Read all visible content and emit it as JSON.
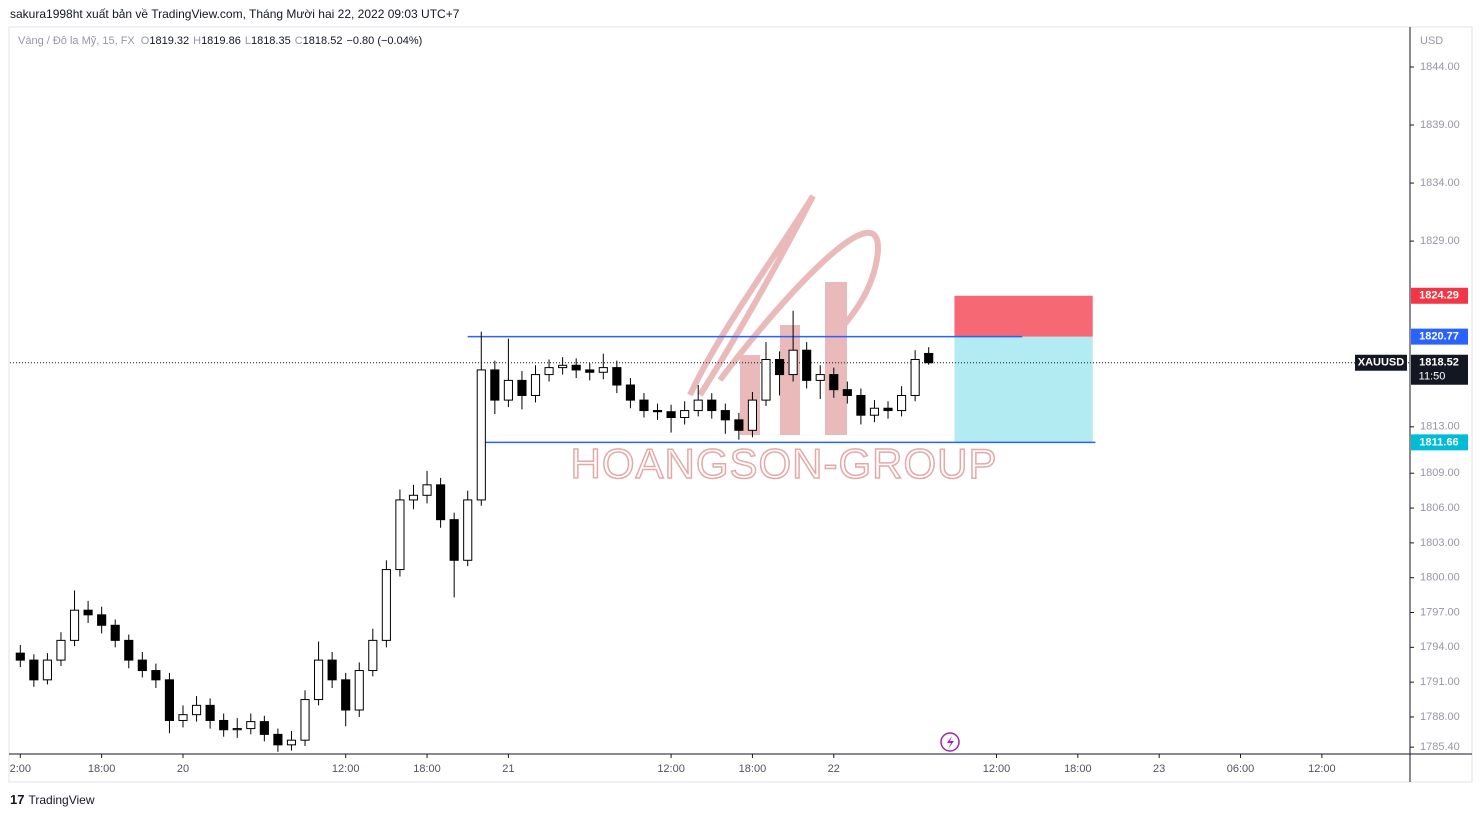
{
  "header": {
    "published": "sakura1998ht xuất bản về TradingView.com, Tháng Mười hai 22, 2022 09:03 UTC+7"
  },
  "chart_data": {
    "type": "candlestick",
    "symbol_info": "Vàng / Đô la Mỹ, 15, FX",
    "ohlc_labels": [
      "O",
      "H",
      "L",
      "C"
    ],
    "ohlc_values": [
      1819.32,
      1819.86,
      1818.35,
      1818.52
    ],
    "change": "−0.80 (−0.04%)",
    "currency": "USD",
    "symbol": "XAUUSD",
    "countdown": "11:50",
    "up_color": "#ffffff",
    "down_color": "#000000",
    "border_color": "#000000",
    "x": [
      -12,
      -11,
      -10,
      -9,
      -8,
      -7,
      -6,
      -5,
      -4,
      -3,
      -2,
      -1,
      0,
      1,
      2,
      3,
      4,
      5,
      6,
      7,
      8,
      9,
      10,
      11,
      12,
      13,
      14,
      15,
      16,
      17,
      18,
      19,
      20,
      21,
      22,
      23,
      24,
      25,
      26,
      27,
      28,
      29,
      30,
      31,
      32,
      33,
      34,
      35,
      36,
      37,
      38,
      39,
      40,
      41,
      42,
      43,
      44,
      45,
      46,
      47,
      48,
      49,
      50,
      51,
      52,
      53,
      54,
      55
    ],
    "candles": [
      [
        1793.5,
        1794.2,
        1792.3,
        1792.9
      ],
      [
        1792.9,
        1793.4,
        1790.6,
        1791.2
      ],
      [
        1791.2,
        1793.5,
        1790.8,
        1792.9
      ],
      [
        1792.9,
        1795.3,
        1792.4,
        1794.6
      ],
      [
        1794.6,
        1798.9,
        1794.1,
        1797.2
      ],
      [
        1797.2,
        1798.0,
        1796.1,
        1796.8
      ],
      [
        1796.8,
        1797.5,
        1795.2,
        1795.9
      ],
      [
        1795.9,
        1796.4,
        1794.0,
        1794.6
      ],
      [
        1794.6,
        1795.1,
        1792.2,
        1792.9
      ],
      [
        1792.9,
        1793.6,
        1791.4,
        1792.0
      ],
      [
        1792.0,
        1792.6,
        1790.5,
        1791.2
      ],
      [
        1791.2,
        1791.8,
        1786.6,
        1787.7
      ],
      [
        1787.7,
        1789.0,
        1787.1,
        1788.2
      ],
      [
        1788.2,
        1789.8,
        1787.6,
        1789.0
      ],
      [
        1789.0,
        1789.6,
        1787.0,
        1787.7
      ],
      [
        1787.7,
        1788.3,
        1786.3,
        1786.9
      ],
      [
        1786.9,
        1787.9,
        1786.2,
        1787.0
      ],
      [
        1787.0,
        1788.3,
        1786.5,
        1787.6
      ],
      [
        1787.6,
        1788.1,
        1785.9,
        1786.5
      ],
      [
        1786.5,
        1787.0,
        1785.0,
        1785.6
      ],
      [
        1785.6,
        1786.8,
        1785.1,
        1786.0
      ],
      [
        1786.0,
        1790.3,
        1785.5,
        1789.5
      ],
      [
        1789.5,
        1794.5,
        1789.0,
        1792.9
      ],
      [
        1792.9,
        1793.6,
        1790.5,
        1791.2
      ],
      [
        1791.2,
        1791.8,
        1787.2,
        1788.6
      ],
      [
        1788.6,
        1792.7,
        1788.0,
        1792.0
      ],
      [
        1792.0,
        1795.6,
        1791.5,
        1794.6
      ],
      [
        1794.6,
        1801.5,
        1794.0,
        1800.7
      ],
      [
        1800.7,
        1807.6,
        1800.1,
        1806.7
      ],
      [
        1806.7,
        1808.0,
        1805.9,
        1807.1
      ],
      [
        1807.1,
        1809.2,
        1806.4,
        1808.0
      ],
      [
        1808.0,
        1808.6,
        1804.3,
        1805.0
      ],
      [
        1805.0,
        1805.6,
        1798.3,
        1801.5
      ],
      [
        1801.5,
        1807.5,
        1801.0,
        1806.7
      ],
      [
        1806.7,
        1821.2,
        1806.2,
        1817.9
      ],
      [
        1817.9,
        1818.7,
        1814.1,
        1815.3
      ],
      [
        1815.3,
        1820.6,
        1814.7,
        1817.0
      ],
      [
        1817.0,
        1817.8,
        1814.5,
        1815.7
      ],
      [
        1815.7,
        1818.3,
        1815.1,
        1817.5
      ],
      [
        1817.5,
        1818.8,
        1816.9,
        1818.1
      ],
      [
        1818.1,
        1819.0,
        1817.5,
        1818.3
      ],
      [
        1818.3,
        1818.9,
        1817.2,
        1817.9
      ],
      [
        1817.9,
        1818.5,
        1817.0,
        1817.7
      ],
      [
        1817.7,
        1819.3,
        1817.1,
        1818.1
      ],
      [
        1818.1,
        1818.7,
        1815.9,
        1816.6
      ],
      [
        1816.6,
        1817.2,
        1814.6,
        1815.3
      ],
      [
        1815.3,
        1815.9,
        1813.8,
        1814.4
      ],
      [
        1814.4,
        1815.0,
        1813.6,
        1814.3
      ],
      [
        1814.3,
        1814.9,
        1812.5,
        1813.8
      ],
      [
        1813.8,
        1815.2,
        1813.2,
        1814.4
      ],
      [
        1814.4,
        1816.6,
        1813.9,
        1815.3
      ],
      [
        1815.3,
        1815.9,
        1813.7,
        1814.4
      ],
      [
        1814.4,
        1815.0,
        1812.4,
        1813.6
      ],
      [
        1813.6,
        1814.2,
        1811.9,
        1812.7
      ],
      [
        1812.7,
        1816.0,
        1812.1,
        1815.3
      ],
      [
        1815.3,
        1820.3,
        1814.8,
        1818.8
      ],
      [
        1818.8,
        1819.5,
        1815.7,
        1817.5
      ],
      [
        1817.5,
        1823.0,
        1816.9,
        1819.6
      ],
      [
        1819.6,
        1820.3,
        1816.3,
        1817.0
      ],
      [
        1817.0,
        1818.3,
        1815.4,
        1817.5
      ],
      [
        1817.5,
        1818.1,
        1815.5,
        1816.2
      ],
      [
        1816.2,
        1816.9,
        1815.0,
        1815.7
      ],
      [
        1815.7,
        1816.3,
        1813.2,
        1814.0
      ],
      [
        1814.0,
        1815.3,
        1813.4,
        1814.6
      ],
      [
        1814.6,
        1815.2,
        1813.7,
        1814.4
      ],
      [
        1814.4,
        1816.5,
        1813.9,
        1815.7
      ],
      [
        1815.7,
        1819.6,
        1815.2,
        1818.8
      ],
      [
        1819.32,
        1819.86,
        1818.35,
        1818.52
      ]
    ],
    "xlim": [
      -12.76,
      90.5
    ],
    "xticks": [
      {
        "value": -12,
        "label": "2:00"
      },
      {
        "value": -6,
        "label": "18:00"
      },
      {
        "value": 0,
        "label": "20"
      },
      {
        "value": 12,
        "label": "12:00"
      },
      {
        "value": 18,
        "label": "18:00"
      },
      {
        "value": 24,
        "label": "21"
      },
      {
        "value": 36,
        "label": "12:00"
      },
      {
        "value": 42,
        "label": "18:00"
      },
      {
        "value": 48,
        "label": "22"
      },
      {
        "value": 60,
        "label": "12:00"
      },
      {
        "value": 66,
        "label": "18:00"
      },
      {
        "value": 72,
        "label": "23"
      },
      {
        "value": 78,
        "label": "06:00"
      },
      {
        "value": 84,
        "label": "12:00"
      }
    ],
    "ylim": [
      1784.81,
      1847.36
    ],
    "yticks": [
      {
        "value": 1844,
        "label": "1844.00"
      },
      {
        "value": 1839,
        "label": "1839.00"
      },
      {
        "value": 1834,
        "label": "1834.00"
      },
      {
        "value": 1829,
        "label": "1829.00"
      },
      {
        "value": 1813,
        "label": "1813.00"
      },
      {
        "value": 1809,
        "label": "1809.00"
      },
      {
        "value": 1806,
        "label": "1806.00"
      },
      {
        "value": 1803,
        "label": "1803.00"
      },
      {
        "value": 1800,
        "label": "1800.00"
      },
      {
        "value": 1797,
        "label": "1797.00"
      },
      {
        "value": 1794,
        "label": "1794.00"
      },
      {
        "value": 1791,
        "label": "1791.00"
      },
      {
        "value": 1788,
        "label": "1788.00"
      },
      {
        "value": 1785.4,
        "label": "1785.40"
      }
    ],
    "levels": [
      {
        "value": 1820.77,
        "x": [
          21.0,
          61.9
        ],
        "color": "#2962ff"
      },
      {
        "value": 1811.66,
        "x": [
          22.0,
          67.3
        ],
        "color": "#2962ff"
      }
    ],
    "position": {
      "x": [
        56.9,
        67.1
      ],
      "stop": 1824.29,
      "entry": 1820.77,
      "target": 1811.66,
      "stop_color": "#f23645",
      "entry_color": "#2962ff",
      "target_color": "#00bcd4"
    }
  },
  "watermark": "HOANGSON-GROUP",
  "footer": {
    "brand": "TradingView"
  }
}
